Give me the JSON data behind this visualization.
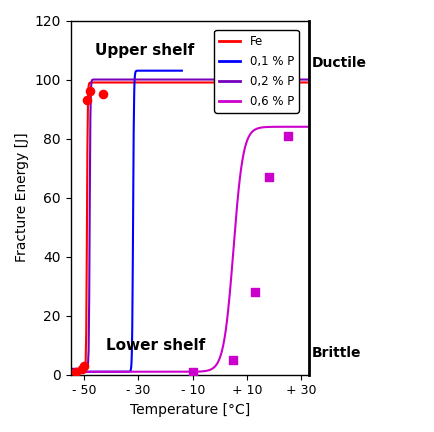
{
  "title": "",
  "xlabel": "Temperature [°C]",
  "ylabel": "Fracture Energy [J]",
  "xlim": [
    -55,
    33
  ],
  "ylim": [
    0,
    120
  ],
  "xticks": [
    -50,
    -30,
    -10,
    10,
    30
  ],
  "xticklabels": [
    "- 50",
    "- 30",
    "- 10",
    "+ 10",
    "+ 30"
  ],
  "yticks": [
    0,
    20,
    40,
    60,
    80,
    100,
    120
  ],
  "fe_color": "#ff0000",
  "fe_scatter_x": [
    -53,
    -51,
    -50,
    -49,
    -48,
    -43
  ],
  "fe_scatter_y": [
    1,
    2,
    3,
    93,
    96,
    95
  ],
  "p01_color": "#0000ff",
  "p02_color": "#7700bb",
  "p06_color": "#cc00cc",
  "upper_shelf_x": -46,
  "upper_shelf_y": 110,
  "lower_shelf_x": -42,
  "lower_shelf_y": 10,
  "ductile_label": "Ductile",
  "brittle_label": "Brittle",
  "ductile_y": 105,
  "brittle_y": 8,
  "p06_scatter_x": [
    -10,
    5,
    13,
    18,
    25
  ],
  "p06_scatter_y": [
    1,
    5,
    28,
    67,
    81
  ],
  "legend_fe": "Fe",
  "legend_p01": "0,1 % P",
  "legend_p02": "0,2 % P",
  "legend_p06": "0,6 % P",
  "background_color": "#ffffff"
}
